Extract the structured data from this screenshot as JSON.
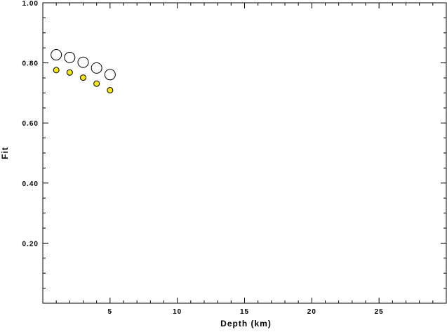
{
  "chart_data": {
    "type": "scatter",
    "title": "",
    "xlabel": "Depth (km)",
    "ylabel": "Fit",
    "xlim": [
      0,
      30
    ],
    "ylim": [
      0,
      1.0
    ],
    "x_ticks": [
      5,
      10,
      15,
      20,
      25
    ],
    "x_tick_labels": [
      "5",
      "10",
      "15",
      "20",
      "25"
    ],
    "y_ticks": [
      0.2,
      0.4,
      0.6,
      0.8,
      1.0
    ],
    "y_tick_labels": [
      "0.20",
      "0.40",
      "0.60",
      "0.80",
      "1.00"
    ],
    "grid": false,
    "legend": "none",
    "series": [
      {
        "marker": "open-circle",
        "color": "#000000",
        "fill": "#ffffff",
        "x": [
          1,
          2,
          3,
          4,
          5
        ],
        "y": [
          0.827,
          0.818,
          0.802,
          0.783,
          0.761
        ]
      },
      {
        "marker": "filled-circle",
        "color": "#000000",
        "fill": "#f2e415",
        "x": [
          1,
          2,
          3,
          4,
          5
        ],
        "y": [
          0.776,
          0.768,
          0.751,
          0.731,
          0.709
        ]
      }
    ]
  }
}
